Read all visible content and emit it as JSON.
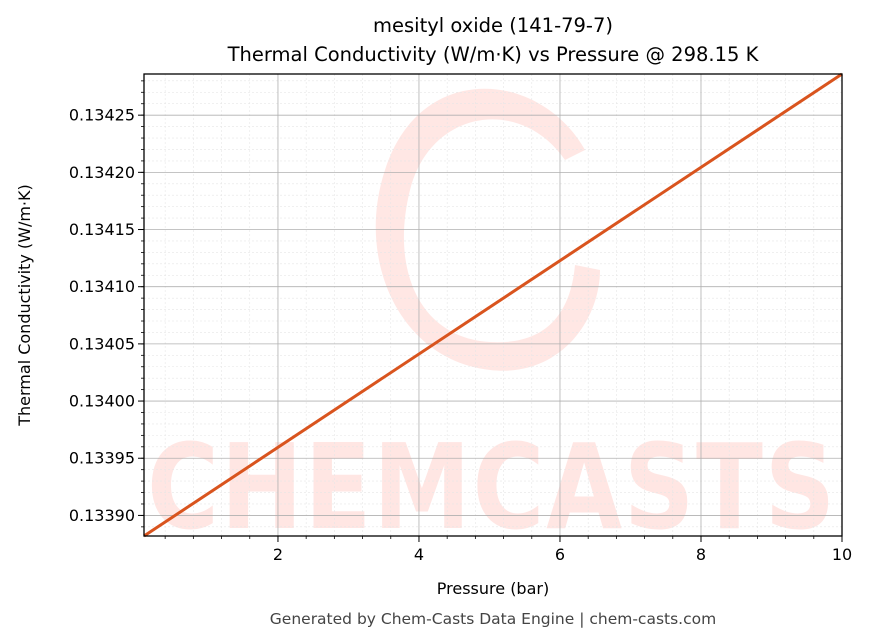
{
  "chart_data": {
    "type": "line",
    "title": "mesityl oxide (141-79-7)",
    "subtitle": "Thermal Conductivity (W/m·K) vs Pressure @ 298.15 K",
    "xlabel": "Pressure (bar)",
    "ylabel": "Thermal Conductivity (W/m·K)",
    "xlim": [
      0.1,
      10
    ],
    "ylim": [
      0.133882,
      0.134286
    ],
    "x_ticks": [
      2,
      4,
      6,
      8,
      10
    ],
    "x_tick_labels": [
      "2",
      "4",
      "6",
      "8",
      "10"
    ],
    "y_ticks": [
      0.1339,
      0.13395,
      0.134,
      0.13405,
      0.1341,
      0.13415,
      0.1342,
      0.13425
    ],
    "y_tick_labels": [
      "0.13390",
      "0.13395",
      "0.13400",
      "0.13405",
      "0.13410",
      "0.13415",
      "0.13420",
      "0.13425"
    ],
    "grid": true,
    "series": [
      {
        "color": "#d9541e",
        "x": [
          0.1,
          10
        ],
        "y": [
          0.133882,
          0.134286
        ]
      }
    ]
  },
  "footer": "Generated by Chem-Casts Data Engine | chem-casts.com",
  "watermark": "CHEMCASTS"
}
